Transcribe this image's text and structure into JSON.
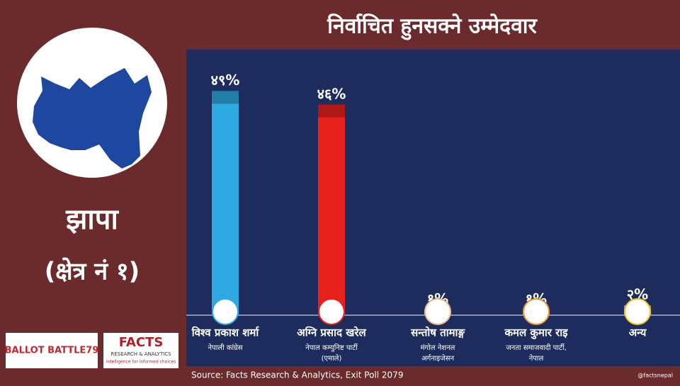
{
  "chart_data": {
    "type": "bar",
    "title": "निर्वाचित हुनसक्ने उम्मेदवार",
    "categories": [
      "विश्व प्रकाश शर्मा",
      "अग्नि प्रसाद खरेल",
      "सन्तोष तामाङ्ग",
      "कमल कुमार राइ",
      "अन्य"
    ],
    "parties": [
      [
        "नेपाली कांग्रेस"
      ],
      [
        "नेपाल कम्युनिष्ट पार्टी",
        "(एमाले)"
      ],
      [
        "मंगोल नेशनल",
        "अर्गनाइजेसन"
      ],
      [
        "जनता समाजवादी पार्टी,",
        "नेपाल"
      ],
      null
    ],
    "values": [
      49,
      46,
      1,
      1,
      2
    ],
    "value_labels": [
      "४९%",
      "४६%",
      "१%",
      "१%",
      "२%"
    ],
    "colors": [
      "#2ea9e1",
      "#e8211d",
      "#f2b58a",
      "#f0922e",
      "#f2c21e"
    ],
    "ylim": [
      0,
      50
    ]
  },
  "sidebar": {
    "district": "झापा",
    "constituency": "(क्षेत्र नं १)"
  },
  "logos": {
    "ballot": "BALLOT BATTLE79",
    "facts": "FACTS",
    "facts_sub": "RESEARCH & ANALYTICS",
    "facts_tag": "intelligence for informed choices"
  },
  "footer": {
    "source": "Source: Facts Research & Analytics, Exit Poll 2079",
    "handle": "@factsnepal"
  }
}
